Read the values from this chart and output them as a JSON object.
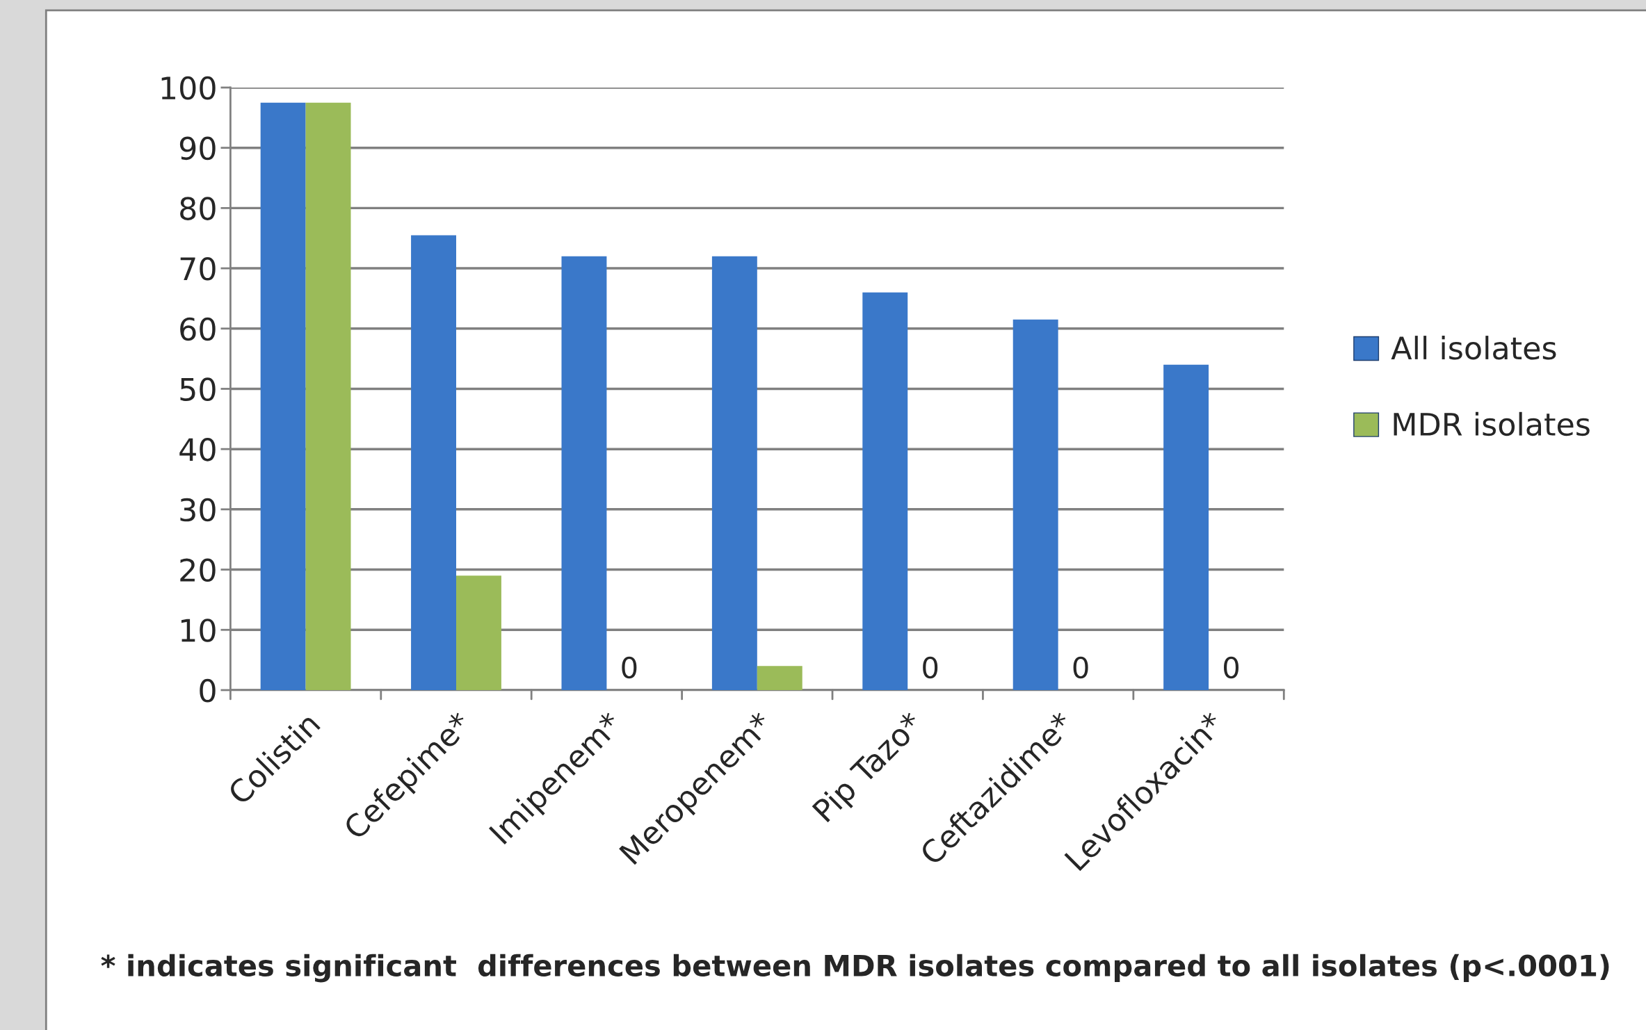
{
  "chart_data": {
    "type": "bar",
    "categories": [
      "Colistin",
      "Cefepime*",
      "Imipenem*",
      "Meropenem*",
      "Pip Tazo*",
      "Ceftazidime*",
      "Levofloxacin*"
    ],
    "series": [
      {
        "name": "All isolates",
        "color": "#3a78c9",
        "values": [
          97.5,
          75.5,
          72,
          72,
          66,
          61.5,
          54
        ]
      },
      {
        "name": "MDR isolates",
        "color": "#9bbb59",
        "values": [
          97.5,
          19,
          0,
          4,
          0,
          0,
          0
        ],
        "value_labels": [
          null,
          null,
          "0",
          null,
          "0",
          "0",
          "0"
        ]
      }
    ],
    "ylim": [
      0,
      100
    ],
    "yticks": [
      0,
      10,
      20,
      30,
      40,
      50,
      60,
      70,
      80,
      90,
      100
    ],
    "grid": "y",
    "legend": "right",
    "annotations": [
      "* indicates significant  differences between MDR isolates compared to all isolates (p<.0001)"
    ]
  }
}
